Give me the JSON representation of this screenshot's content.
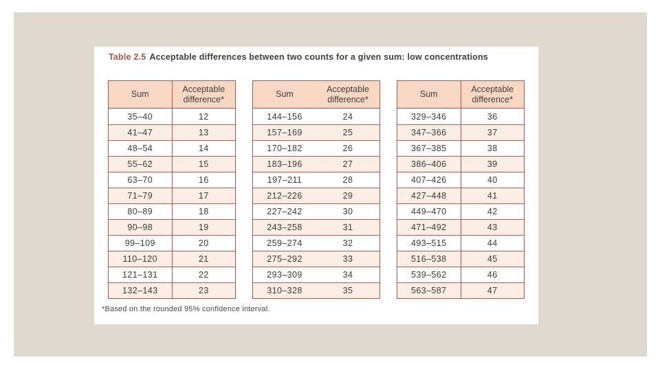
{
  "page": {
    "title_label": "Table 2.5",
    "title_text": "Acceptable differences between two counts for a given sum: low concentrations",
    "footnote": "*Based on the rounded 95% confidence interval."
  },
  "columns": {
    "sum": "Sum",
    "difference": "Acceptable difference*"
  },
  "colors": {
    "slide_background": "#dfd9d0",
    "panel_background": "#ffffff",
    "header_fill": "#f8d7c3",
    "row_alt_fill": "#fceee4",
    "table_border": "#b5544a",
    "title_accent": "#b05540",
    "text": "#3a3a3a"
  },
  "tables": [
    {
      "rows": [
        {
          "sum": "35–40",
          "diff": "12"
        },
        {
          "sum": "41–47",
          "diff": "13"
        },
        {
          "sum": "48–54",
          "diff": "14"
        },
        {
          "sum": "55–62",
          "diff": "15"
        },
        {
          "sum": "63–70",
          "diff": "16"
        },
        {
          "sum": "71–79",
          "diff": "17"
        },
        {
          "sum": "80–89",
          "diff": "18"
        },
        {
          "sum": "90–98",
          "diff": "19"
        },
        {
          "sum": "99–109",
          "diff": "20"
        },
        {
          "sum": "110–120",
          "diff": "21"
        },
        {
          "sum": "121–131",
          "diff": "22"
        },
        {
          "sum": "132–143",
          "diff": "23"
        }
      ]
    },
    {
      "rows": [
        {
          "sum": "144–156",
          "diff": "24"
        },
        {
          "sum": "157–169",
          "diff": "25"
        },
        {
          "sum": "170–182",
          "diff": "26"
        },
        {
          "sum": "183–196",
          "diff": "27"
        },
        {
          "sum": "197–211",
          "diff": "28"
        },
        {
          "sum": "212–226",
          "diff": "29"
        },
        {
          "sum": "227–242",
          "diff": "30"
        },
        {
          "sum": "243–258",
          "diff": "31"
        },
        {
          "sum": "259–274",
          "diff": "32"
        },
        {
          "sum": "275–292",
          "diff": "33"
        },
        {
          "sum": "293–309",
          "diff": "34"
        },
        {
          "sum": "310–328",
          "diff": "35"
        }
      ]
    },
    {
      "rows": [
        {
          "sum": "329–346",
          "diff": "36"
        },
        {
          "sum": "347–366",
          "diff": "37"
        },
        {
          "sum": "367–385",
          "diff": "38"
        },
        {
          "sum": "386–406",
          "diff": "39"
        },
        {
          "sum": "407–426",
          "diff": "40"
        },
        {
          "sum": "427–448",
          "diff": "41"
        },
        {
          "sum": "449–470",
          "diff": "42"
        },
        {
          "sum": "471–492",
          "diff": "43"
        },
        {
          "sum": "493–515",
          "diff": "44"
        },
        {
          "sum": "516–538",
          "diff": "45"
        },
        {
          "sum": "539–562",
          "diff": "46"
        },
        {
          "sum": "563–587",
          "diff": "47"
        }
      ]
    }
  ]
}
